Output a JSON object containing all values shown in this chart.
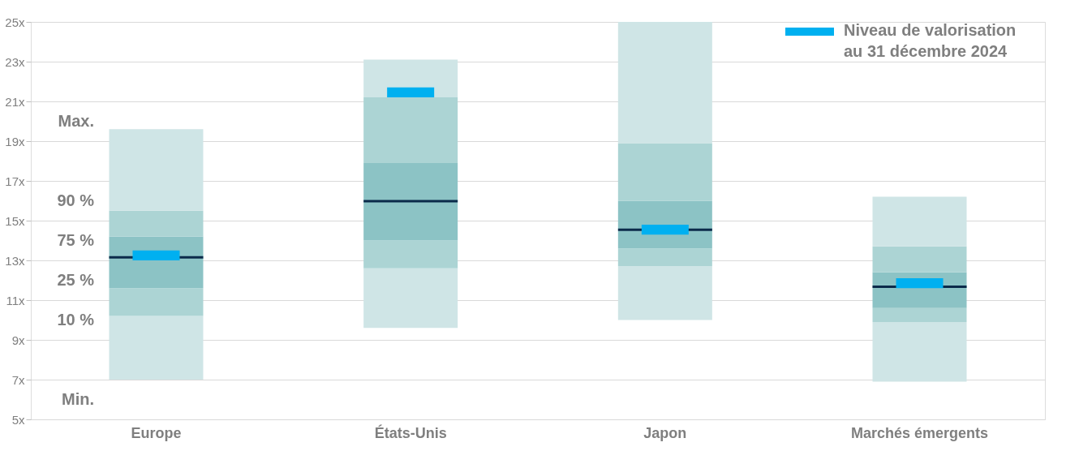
{
  "chart_data": {
    "type": "bar",
    "categories": [
      "Europe",
      "États-Unis",
      "Japon",
      "Marchés émergents"
    ],
    "series": [
      {
        "color": "#cfe5e6",
        "base": [
          7.0,
          9.6,
          10.0,
          6.9
        ],
        "values": [
          3.2,
          3.0,
          2.7,
          3.0
        ]
      },
      {
        "color": "#acd4d4",
        "base": [
          10.2,
          12.6,
          12.7,
          9.9
        ],
        "values": [
          1.4,
          1.4,
          0.9,
          0.7
        ]
      },
      {
        "color": "#8cc3c5",
        "base": [
          11.6,
          14.0,
          13.6,
          10.6
        ],
        "values": [
          2.6,
          3.9,
          2.4,
          1.8
        ]
      },
      {
        "color": "#acd4d4",
        "base": [
          14.2,
          17.9,
          16.0,
          12.4
        ],
        "values": [
          1.3,
          3.3,
          2.9,
          1.3
        ]
      },
      {
        "color": "#cfe5e6",
        "base": [
          15.5,
          21.2,
          18.9,
          13.7
        ],
        "values": [
          4.1,
          1.9,
          6.1,
          2.5
        ]
      },
      {
        "color": "#0b2a4a",
        "base": [
          13.09,
          15.92,
          14.48,
          11.61
        ],
        "values": [
          0.12,
          0.12,
          0.12,
          0.12
        ]
      },
      {
        "name": "Niveau de valorisation au 31 décembre 2024",
        "color": "#00b0f0",
        "base": [
          13.0,
          21.2,
          14.3,
          11.6
        ],
        "values": [
          0.5,
          0.5,
          0.5,
          0.5
        ]
      }
    ],
    "ylim": [
      5,
      25
    ],
    "yticks": [
      {
        "value": 5,
        "label": "5x"
      },
      {
        "value": 7,
        "label": "7x"
      },
      {
        "value": 9,
        "label": "9x"
      },
      {
        "value": 11,
        "label": "11x"
      },
      {
        "value": 13,
        "label": "13x"
      },
      {
        "value": 15,
        "label": "15x"
      },
      {
        "value": 17,
        "label": "17x"
      },
      {
        "value": 19,
        "label": "19x"
      },
      {
        "value": 21,
        "label": "21x"
      },
      {
        "value": 23,
        "label": "23x"
      },
      {
        "value": 25,
        "label": "25x"
      }
    ],
    "grid": "y",
    "legend": "top right",
    "annotations": [
      "Max.",
      "90 %",
      "75 %",
      "25 %",
      "10 %",
      "Min."
    ]
  }
}
